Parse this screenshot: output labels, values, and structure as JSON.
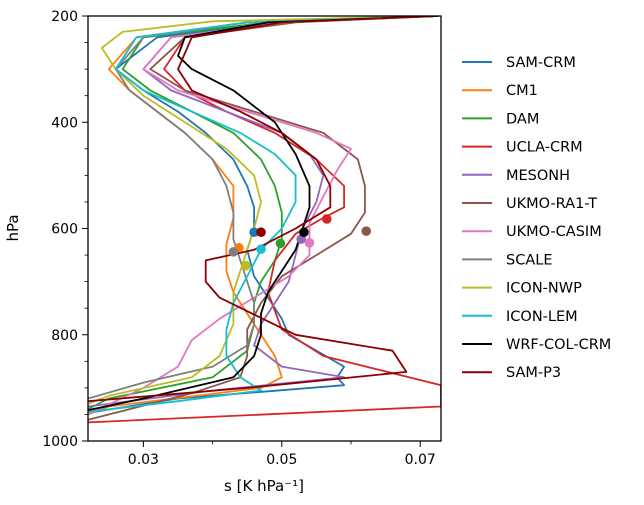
{
  "chart_data": {
    "type": "line",
    "xlabel": "s [K hPa⁻¹]",
    "ylabel": "hPa",
    "xlim": [
      0.022,
      0.073
    ],
    "ylim": [
      1000,
      200
    ],
    "y_inverted": true,
    "xticks": [
      0.03,
      0.05,
      0.07
    ],
    "xtick_labels": [
      "0.03",
      "0.05",
      "0.07"
    ],
    "yticks": [
      200,
      400,
      600,
      800,
      1000
    ],
    "ytick_labels": [
      "200",
      "400",
      "600",
      "800",
      "1000"
    ],
    "legend_position": "right",
    "series": [
      {
        "name": "SAM-CRM",
        "color": "#1f77b4",
        "x": [
          0.0725,
          0.05,
          0.032,
          0.026,
          0.03,
          0.035,
          0.039,
          0.043,
          0.045,
          0.046,
          0.046,
          0.045,
          0.046,
          0.048,
          0.05,
          0.051,
          0.055,
          0.059,
          0.058,
          0.059,
          0.035,
          0.023
        ],
        "y": [
          200,
          210,
          240,
          300,
          340,
          380,
          420,
          470,
          520,
          560,
          600,
          640,
          690,
          730,
          770,
          800,
          830,
          860,
          880,
          895,
          920,
          945
        ],
        "marker": {
          "x": 0.046,
          "y": 607
        }
      },
      {
        "name": "CM1",
        "color": "#ff7f0e",
        "x": [
          0.0725,
          0.045,
          0.029,
          0.025,
          0.028,
          0.032,
          0.036,
          0.04,
          0.043,
          0.043,
          0.042,
          0.042,
          0.043,
          0.045,
          0.047,
          0.049,
          0.05,
          0.047,
          0.025,
          0.022
        ],
        "y": [
          200,
          212,
          240,
          300,
          340,
          380,
          420,
          470,
          520,
          580,
          630,
          680,
          720,
          760,
          800,
          840,
          880,
          900,
          935,
          950
        ],
        "marker": {
          "x": 0.0438,
          "y": 636
        }
      },
      {
        "name": "DAM",
        "color": "#2ca02c",
        "x": [
          0.0725,
          0.048,
          0.03,
          0.027,
          0.031,
          0.037,
          0.043,
          0.047,
          0.049,
          0.05,
          0.05,
          0.049,
          0.047,
          0.046,
          0.046,
          0.045,
          0.04,
          0.025,
          0.022
        ],
        "y": [
          200,
          212,
          240,
          300,
          340,
          380,
          420,
          470,
          520,
          570,
          620,
          660,
          700,
          740,
          780,
          830,
          880,
          920,
          940
        ],
        "marker": {
          "x": 0.0498,
          "y": 628
        }
      },
      {
        "name": "UCLA-CRM",
        "color": "#d62728",
        "x": [
          0.0725,
          0.048,
          0.036,
          0.033,
          0.036,
          0.042,
          0.049,
          0.055,
          0.059,
          0.059,
          0.056,
          0.052,
          0.049,
          0.048,
          0.05,
          0.056,
          0.073,
          0.073,
          0.022
        ],
        "y": [
          200,
          212,
          240,
          300,
          340,
          380,
          420,
          470,
          520,
          560,
          580,
          610,
          660,
          720,
          790,
          840,
          895,
          935,
          965
        ],
        "marker": {
          "x": 0.0565,
          "y": 582
        }
      },
      {
        "name": "MESONH",
        "color": "#9467bd",
        "x": [
          0.0725,
          0.05,
          0.034,
          0.03,
          0.034,
          0.042,
          0.05,
          0.054,
          0.056,
          0.055,
          0.053,
          0.052,
          0.051,
          0.049,
          0.047,
          0.046,
          0.05,
          0.059,
          0.04,
          0.022
        ],
        "y": [
          200,
          212,
          240,
          300,
          340,
          380,
          420,
          460,
          500,
          550,
          600,
          650,
          700,
          740,
          780,
          820,
          860,
          880,
          905,
          935
        ],
        "marker": {
          "x": 0.0528,
          "y": 620
        }
      },
      {
        "name": "UKMO-RA1-T",
        "color": "#8c564b",
        "x": [
          0.0725,
          0.052,
          0.036,
          0.031,
          0.036,
          0.046,
          0.056,
          0.061,
          0.062,
          0.062,
          0.06,
          0.055,
          0.05,
          0.047,
          0.045,
          0.045,
          0.044,
          0.037,
          0.022
        ],
        "y": [
          200,
          212,
          240,
          300,
          340,
          380,
          420,
          470,
          520,
          570,
          610,
          650,
          690,
          740,
          790,
          840,
          880,
          910,
          960
        ],
        "marker": {
          "x": 0.0622,
          "y": 605
        }
      },
      {
        "name": "UKMO-CASIM",
        "color": "#e377c2",
        "x": [
          0.0725,
          0.05,
          0.034,
          0.03,
          0.035,
          0.045,
          0.055,
          0.06,
          0.058,
          0.056,
          0.054,
          0.054,
          0.051,
          0.046,
          0.041,
          0.037,
          0.035,
          0.03,
          0.022
        ],
        "y": [
          200,
          212,
          240,
          300,
          340,
          380,
          420,
          450,
          490,
          540,
          590,
          650,
          690,
          730,
          770,
          810,
          860,
          900,
          950
        ],
        "marker": {
          "x": 0.054,
          "y": 627
        }
      },
      {
        "name": "SCALE",
        "color": "#7f7f7f",
        "x": [
          0.0725,
          0.045,
          0.03,
          0.026,
          0.028,
          0.032,
          0.036,
          0.04,
          0.042,
          0.043,
          0.043,
          0.044,
          0.045,
          0.046,
          0.046,
          0.045,
          0.04,
          0.03,
          0.022
        ],
        "y": [
          200,
          212,
          240,
          300,
          340,
          380,
          420,
          470,
          520,
          570,
          620,
          660,
          700,
          740,
          780,
          820,
          860,
          890,
          920
        ],
        "marker": {
          "x": 0.043,
          "y": 644
        }
      },
      {
        "name": "ICON-NWP",
        "color": "#bcbd22",
        "x": [
          0.0725,
          0.04,
          0.027,
          0.024,
          0.026,
          0.03,
          0.036,
          0.042,
          0.046,
          0.047,
          0.046,
          0.045,
          0.044,
          0.043,
          0.043,
          0.041,
          0.037,
          0.025,
          0.022
        ],
        "y": [
          200,
          210,
          230,
          260,
          300,
          350,
          400,
          450,
          500,
          550,
          600,
          640,
          680,
          720,
          780,
          840,
          880,
          915,
          930
        ],
        "marker": {
          "x": 0.0448,
          "y": 670
        }
      },
      {
        "name": "ICON-LEM",
        "color": "#17becf",
        "x": [
          0.0725,
          0.045,
          0.029,
          0.026,
          0.03,
          0.037,
          0.044,
          0.049,
          0.052,
          0.052,
          0.05,
          0.047,
          0.045,
          0.043,
          0.042,
          0.042,
          0.044,
          0.047,
          0.035,
          0.022
        ],
        "y": [
          200,
          212,
          240,
          300,
          340,
          380,
          420,
          460,
          500,
          550,
          600,
          640,
          690,
          740,
          790,
          840,
          880,
          905,
          925,
          945
        ],
        "marker": {
          "x": 0.047,
          "y": 639
        }
      },
      {
        "name": "WRF-COL-CRM",
        "color": "#000000",
        "x": [
          0.0725,
          0.048,
          0.036,
          0.035,
          0.037,
          0.043,
          0.049,
          0.052,
          0.054,
          0.054,
          0.053,
          0.052,
          0.05,
          0.048,
          0.047,
          0.047,
          0.046,
          0.043,
          0.03,
          0.022
        ],
        "y": [
          200,
          212,
          240,
          275,
          300,
          340,
          400,
          460,
          520,
          560,
          600,
          640,
          680,
          720,
          760,
          800,
          840,
          880,
          920,
          942
        ],
        "marker": {
          "x": 0.0532,
          "y": 607
        }
      },
      {
        "name": "SAM-P3",
        "color": "#8b0000",
        "x": [
          0.0725,
          0.05,
          0.037,
          0.035,
          0.037,
          0.044,
          0.05,
          0.055,
          0.057,
          0.057,
          0.052,
          0.046,
          0.039,
          0.039,
          0.041,
          0.052,
          0.066,
          0.068,
          0.045,
          0.022
        ],
        "y": [
          200,
          212,
          240,
          300,
          340,
          380,
          420,
          470,
          520,
          560,
          600,
          640,
          660,
          700,
          730,
          800,
          830,
          870,
          900,
          925
        ],
        "marker": {
          "x": 0.047,
          "y": 607
        }
      }
    ]
  }
}
